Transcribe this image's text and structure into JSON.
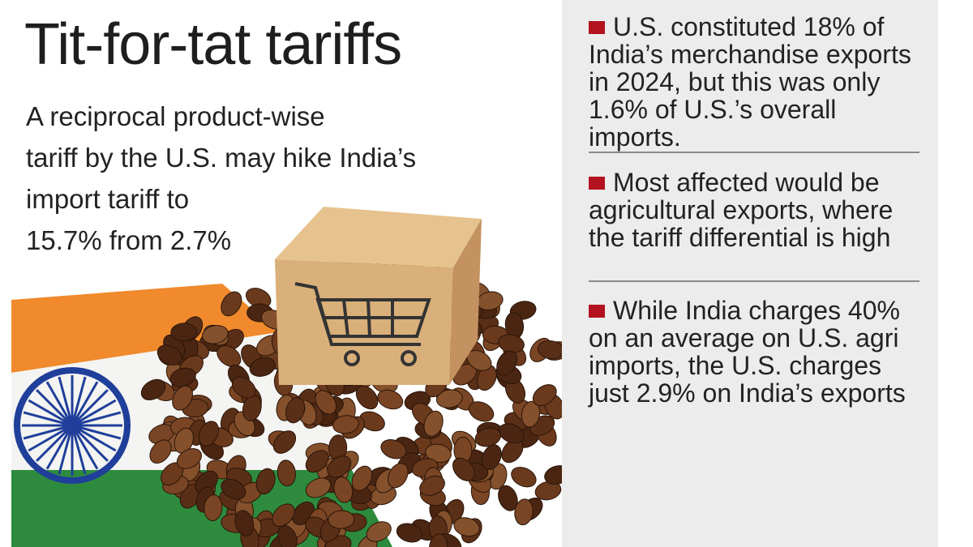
{
  "header": {
    "title": "Tit-for-tat tariffs",
    "subtitle_lines": [
      "A reciprocal product-wise",
      "tariff by the U.S. may hike India’s",
      "import tariff to",
      "15.7% from 2.7%"
    ]
  },
  "illustration": {
    "description_icons": [
      "india-flag-icon",
      "coffee-beans",
      "cardboard-box-icon",
      "shopping-cart-icon"
    ],
    "colors": {
      "saffron": "#f08a2c",
      "green": "#2e8b3e",
      "chakra": "#1f3f9a",
      "box": "#d9b07a",
      "bean": "#5a2f17"
    }
  },
  "points": [
    {
      "text": "U.S. constituted 18% of India’s merchandise exports in 2024, but this was only 1.6% of U.S.’s overall imports."
    },
    {
      "text": "Most affected would be agricultural exports, where the tariff differential is high"
    },
    {
      "text": "While India charges 40% on an average on U.S. agri imports, the U.S. charges just 2.9% on India’s exports"
    }
  ],
  "colors": {
    "bullet": "#b3121f",
    "panel": "#ececec",
    "rule": "#8a8a8a"
  }
}
